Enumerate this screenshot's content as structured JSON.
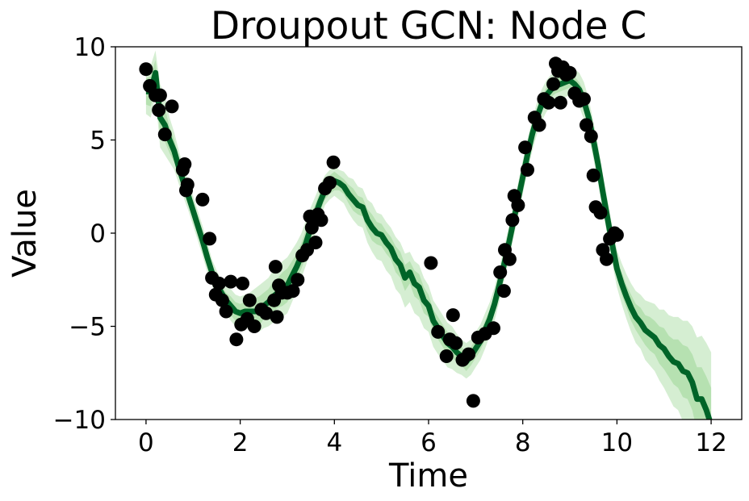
{
  "chart_data": {
    "type": "line",
    "title": "Droupout GCN: Node C",
    "xlabel": "Time",
    "ylabel": "Value",
    "xlim": [
      -0.65,
      12.65
    ],
    "ylim": [
      -10,
      10
    ],
    "xticks": [
      0,
      2,
      4,
      6,
      8,
      10,
      12
    ],
    "yticks": [
      -10,
      -5,
      0,
      5,
      10
    ],
    "xtick_labels": [
      "0",
      "2",
      "4",
      "6",
      "8",
      "10",
      "12"
    ],
    "ytick_labels": [
      "−10",
      "−5",
      "0",
      "5",
      "10"
    ],
    "grid": false,
    "colors": {
      "observed": "#000000",
      "mean_line": "#006428",
      "band": "#a1d99b"
    },
    "observed_points": {
      "x": [
        0.0,
        0.08,
        0.2,
        0.27,
        0.3,
        0.4,
        0.55,
        0.78,
        0.82,
        0.85,
        0.88,
        1.2,
        1.35,
        1.4,
        1.48,
        1.55,
        1.62,
        1.7,
        1.8,
        1.92,
        2.02,
        2.05,
        2.15,
        2.2,
        2.3,
        2.45,
        2.55,
        2.72,
        2.75,
        2.78,
        2.82,
        2.88,
        3.0,
        3.12,
        3.22,
        3.32,
        3.42,
        3.48,
        3.52,
        3.6,
        3.65,
        3.72,
        3.8,
        3.9,
        3.98,
        6.05,
        6.2,
        6.38,
        6.45,
        6.52,
        6.58,
        6.72,
        6.85,
        6.95,
        7.05,
        7.2,
        7.38,
        7.52,
        7.6,
        7.62,
        7.72,
        7.78,
        7.82,
        7.9,
        8.05,
        8.1,
        8.25,
        8.35,
        8.45,
        8.55,
        8.65,
        8.7,
        8.75,
        8.8,
        8.85,
        8.92,
        9.0,
        9.1,
        9.2,
        9.3,
        9.35,
        9.45,
        9.5,
        9.55,
        9.65,
        9.7,
        9.78,
        9.85,
        9.95,
        10.0
      ],
      "y": [
        8.8,
        7.9,
        7.4,
        6.6,
        7.4,
        5.3,
        6.8,
        3.4,
        3.7,
        2.3,
        2.6,
        1.8,
        -0.3,
        -2.4,
        -3.3,
        -2.7,
        -3.6,
        -4.2,
        -2.6,
        -5.7,
        -4.9,
        -2.7,
        -4.6,
        -3.6,
        -5.0,
        -4.1,
        -4.3,
        -3.6,
        -1.8,
        -4.5,
        -2.8,
        -3.2,
        -3.2,
        -3.1,
        -2.5,
        -1.2,
        -0.9,
        0.9,
        0.3,
        -0.5,
        1.0,
        0.7,
        2.4,
        2.7,
        3.8,
        -1.6,
        -5.3,
        -6.6,
        -5.7,
        -4.4,
        -5.9,
        -6.8,
        -6.5,
        -9.0,
        -5.6,
        -5.4,
        -5.1,
        -2.1,
        -3.1,
        -0.9,
        -1.4,
        0.7,
        2.0,
        1.5,
        4.6,
        3.4,
        6.2,
        5.8,
        7.2,
        7.0,
        8.0,
        9.1,
        8.7,
        7.0,
        8.9,
        8.5,
        8.6,
        7.5,
        7.1,
        7.2,
        5.8,
        5.2,
        3.1,
        1.4,
        1.1,
        -0.9,
        -1.4,
        -0.3,
        0.0,
        -0.1
      ]
    },
    "series": [
      {
        "x": [
          0.0,
          0.1,
          0.2,
          0.3,
          0.4,
          0.5,
          0.6,
          0.7,
          0.8,
          0.9,
          1.0,
          1.1,
          1.2,
          1.3,
          1.4,
          1.5,
          1.6,
          1.7,
          1.8,
          1.9,
          2.0,
          2.1,
          2.2,
          2.3,
          2.4,
          2.5,
          2.6,
          2.7,
          2.8,
          2.9,
          3.0,
          3.1,
          3.2,
          3.3,
          3.4,
          3.5,
          3.6,
          3.7,
          3.8,
          3.9,
          4.0,
          4.1,
          4.2,
          4.3,
          4.4,
          4.5,
          4.6,
          4.7,
          4.8,
          4.9,
          5.0,
          5.1,
          5.2,
          5.3,
          5.4,
          5.5,
          5.6,
          5.7,
          5.8,
          5.9,
          6.0,
          6.1,
          6.2,
          6.3,
          6.4,
          6.5,
          6.6,
          6.7,
          6.8,
          6.9,
          7.0,
          7.1,
          7.2,
          7.3,
          7.4,
          7.5,
          7.6,
          7.7,
          7.8,
          7.9,
          8.0,
          8.1,
          8.2,
          8.3,
          8.4,
          8.5,
          8.6,
          8.7,
          8.8,
          8.9,
          9.0,
          9.1,
          9.2,
          9.3,
          9.4,
          9.5,
          9.6,
          9.7,
          9.8,
          9.9,
          10.0,
          10.1,
          10.2,
          10.3,
          10.4,
          10.5,
          10.6,
          10.7,
          10.8,
          10.9,
          11.0,
          11.1,
          11.2,
          11.3,
          11.4,
          11.5,
          11.6,
          11.7,
          11.8,
          11.9,
          12.0
        ],
        "y": [
          7.6,
          7.6,
          8.6,
          6.2,
          5.8,
          5.0,
          4.4,
          3.5,
          2.7,
          2.0,
          1.2,
          0.4,
          -0.4,
          -1.3,
          -2.1,
          -2.7,
          -3.2,
          -3.6,
          -3.9,
          -4.2,
          -4.3,
          -4.2,
          -4.2,
          -4.2,
          -4.2,
          -3.9,
          -3.7,
          -3.4,
          -3.2,
          -3.0,
          -2.8,
          -2.3,
          -1.8,
          -1.2,
          -0.5,
          0.3,
          1.0,
          1.7,
          2.3,
          2.6,
          2.8,
          2.7,
          2.5,
          2.1,
          1.8,
          1.5,
          1.4,
          0.7,
          0.3,
          0.0,
          -0.1,
          -0.5,
          -0.8,
          -1.4,
          -1.7,
          -2.4,
          -2.1,
          -2.7,
          -2.9,
          -3.6,
          -3.9,
          -4.7,
          -5.1,
          -5.5,
          -5.9,
          -6.1,
          -6.4,
          -6.6,
          -6.9,
          -6.6,
          -6.2,
          -5.8,
          -5.2,
          -4.6,
          -3.8,
          -2.8,
          -1.7,
          -0.6,
          0.6,
          1.8,
          3.0,
          4.2,
          5.3,
          6.2,
          6.9,
          7.4,
          7.7,
          7.9,
          8.0,
          8.1,
          8.2,
          8.0,
          7.7,
          7.1,
          6.2,
          5.0,
          3.7,
          2.2,
          0.8,
          -0.6,
          -1.9,
          -2.7,
          -3.4,
          -4.0,
          -4.5,
          -4.8,
          -5.2,
          -5.4,
          -5.6,
          -6.0,
          -6.2,
          -6.6,
          -6.9,
          -7.0,
          -7.4,
          -7.5,
          -8.0,
          -8.9,
          -8.9,
          -9.5,
          -10.3
        ]
      }
    ],
    "bands": [
      {
        "x": [
          0.0,
          0.1,
          0.2,
          0.3,
          0.4,
          0.5,
          0.6,
          0.7,
          0.8,
          0.9,
          1.0,
          1.1,
          1.2,
          1.3,
          1.4,
          1.5,
          1.6,
          1.7,
          1.8,
          1.9,
          2.0,
          2.1,
          2.2,
          2.3,
          2.4,
          2.5,
          2.6,
          2.7,
          2.8,
          2.9,
          3.0,
          3.1,
          3.2,
          3.3,
          3.4,
          3.5,
          3.6,
          3.7,
          3.8,
          3.9,
          4.0,
          4.1,
          4.2,
          4.3,
          4.4,
          4.5,
          4.6,
          4.7,
          4.8,
          4.9,
          5.0,
          5.1,
          5.2,
          5.3,
          5.4,
          5.5,
          5.6,
          5.7,
          5.8,
          5.9,
          6.0,
          6.1,
          6.2,
          6.3,
          6.4,
          6.5,
          6.6,
          6.7,
          6.8,
          6.9,
          7.0,
          7.1,
          7.2,
          7.3,
          7.4,
          7.5,
          7.6,
          7.7,
          7.8,
          7.9,
          8.0,
          8.1,
          8.2,
          8.3,
          8.4,
          8.5,
          8.6,
          8.7,
          8.8,
          8.9,
          9.0,
          9.1,
          9.2,
          9.3,
          9.4,
          9.5,
          9.6,
          9.7,
          9.8,
          9.9,
          10.0,
          10.1,
          10.2,
          10.3,
          10.4,
          10.5,
          10.6,
          10.7,
          10.8,
          10.9,
          11.0,
          11.1,
          11.2,
          11.3,
          11.4,
          11.5,
          11.6,
          11.7,
          11.8,
          11.9,
          12.0
        ],
        "upper": [
          8.8,
          9.0,
          9.8,
          8.0,
          7.4,
          6.2,
          5.4,
          4.4,
          3.5,
          2.8,
          2.0,
          1.2,
          0.4,
          -0.5,
          -1.4,
          -2.0,
          -2.5,
          -2.9,
          -3.0,
          -3.3,
          -3.4,
          -3.3,
          -3.2,
          -3.0,
          -2.8,
          -2.6,
          -2.4,
          -2.0,
          -1.8,
          -1.5,
          -1.3,
          -0.9,
          -0.5,
          0.0,
          0.7,
          1.4,
          2.0,
          2.6,
          3.1,
          3.4,
          3.6,
          3.4,
          3.3,
          3.0,
          2.9,
          2.5,
          2.4,
          1.8,
          1.6,
          1.1,
          1.0,
          0.6,
          0.3,
          -0.2,
          -0.5,
          -1.1,
          -1.0,
          -1.5,
          -1.7,
          -2.4,
          -2.8,
          -3.6,
          -4.0,
          -4.4,
          -4.8,
          -5.0,
          -5.4,
          -5.7,
          -5.9,
          -5.7,
          -5.3,
          -4.9,
          -4.3,
          -3.7,
          -2.9,
          -1.9,
          -0.8,
          0.3,
          1.5,
          2.7,
          3.9,
          5.0,
          6.1,
          7.0,
          7.7,
          8.2,
          8.5,
          8.7,
          8.8,
          8.9,
          8.9,
          8.8,
          8.6,
          8.1,
          7.2,
          6.0,
          4.7,
          3.2,
          1.8,
          0.4,
          -0.9,
          -1.6,
          -2.2,
          -2.7,
          -3.1,
          -3.3,
          -3.6,
          -3.7,
          -3.8,
          -4.1,
          -4.1,
          -4.4,
          -4.5,
          -4.5,
          -4.7,
          -4.7,
          -5.0,
          -5.6,
          -5.5,
          -5.9,
          -6.4
        ],
        "lower": [
          6.4,
          6.2,
          7.4,
          4.6,
          4.2,
          3.8,
          3.4,
          2.6,
          1.9,
          1.2,
          0.4,
          -0.4,
          -1.2,
          -2.1,
          -2.8,
          -3.4,
          -3.9,
          -4.3,
          -4.7,
          -5.0,
          -5.2,
          -5.1,
          -5.1,
          -5.2,
          -5.3,
          -5.1,
          -5.0,
          -4.8,
          -4.6,
          -4.5,
          -4.3,
          -3.7,
          -3.1,
          -2.4,
          -1.7,
          -0.8,
          0.0,
          0.8,
          1.5,
          1.8,
          2.0,
          1.8,
          1.6,
          1.1,
          0.7,
          0.4,
          0.3,
          -0.5,
          -1.0,
          -1.4,
          -1.5,
          -2.0,
          -2.3,
          -3.0,
          -3.3,
          -4.0,
          -3.7,
          -4.3,
          -4.5,
          -5.1,
          -5.3,
          -6.1,
          -6.5,
          -6.8,
          -7.2,
          -7.3,
          -7.5,
          -7.6,
          -7.8,
          -7.6,
          -7.2,
          -6.8,
          -6.2,
          -5.5,
          -4.7,
          -3.7,
          -2.6,
          -1.5,
          -0.3,
          0.9,
          2.1,
          3.3,
          4.4,
          5.3,
          6.0,
          6.5,
          6.8,
          7.0,
          7.2,
          7.3,
          7.4,
          7.2,
          6.8,
          6.1,
          5.2,
          4.0,
          2.7,
          1.2,
          -0.2,
          -1.6,
          -2.9,
          -3.8,
          -4.6,
          -5.3,
          -5.9,
          -6.2,
          -6.8,
          -7.1,
          -7.4,
          -7.9,
          -8.3,
          -8.8,
          -9.3,
          -9.5,
          -10.1,
          -10.3,
          -11.0,
          -12.2,
          -12.3,
          -13.1,
          -14.2
        ]
      },
      {
        "x": [
          0.0,
          0.1,
          0.2,
          0.3,
          0.4,
          0.5,
          0.6,
          0.7,
          0.8,
          0.9,
          1.0,
          1.1,
          1.2,
          1.3,
          1.4,
          1.5,
          1.6,
          1.7,
          1.8,
          1.9,
          2.0,
          2.1,
          2.2,
          2.3,
          2.4,
          2.5,
          2.6,
          2.7,
          2.8,
          2.9,
          3.0,
          3.1,
          3.2,
          3.3,
          3.4,
          3.5,
          3.6,
          3.7,
          3.8,
          3.9,
          4.0,
          4.1,
          4.2,
          4.3,
          4.4,
          4.5,
          4.6,
          4.7,
          4.8,
          4.9,
          5.0,
          5.1,
          5.2,
          5.3,
          5.4,
          5.5,
          5.6,
          5.7,
          5.8,
          5.9,
          6.0,
          6.1,
          6.2,
          6.3,
          6.4,
          6.5,
          6.6,
          6.7,
          6.8,
          6.9,
          7.0,
          7.1,
          7.2,
          7.3,
          7.4,
          7.5,
          7.6,
          7.7,
          7.8,
          7.9,
          8.0,
          8.1,
          8.2,
          8.3,
          8.4,
          8.5,
          8.6,
          8.7,
          8.8,
          8.9,
          9.0,
          9.1,
          9.2,
          9.3,
          9.4,
          9.5,
          9.6,
          9.7,
          9.8,
          9.9,
          10.0,
          10.1,
          10.2,
          10.3,
          10.4,
          10.5,
          10.6,
          10.7,
          10.8,
          10.9,
          11.0,
          11.1,
          11.2,
          11.3,
          11.4,
          11.5,
          11.6,
          11.7,
          11.8,
          11.9,
          12.0
        ],
        "upper": [
          8.3,
          8.4,
          9.3,
          7.2,
          6.7,
          5.7,
          5.0,
          4.0,
          3.2,
          2.5,
          1.7,
          0.9,
          0.1,
          -0.8,
          -1.7,
          -2.3,
          -2.8,
          -3.2,
          -3.4,
          -3.7,
          -3.8,
          -3.7,
          -3.6,
          -3.5,
          -3.4,
          -3.2,
          -3.0,
          -2.6,
          -2.4,
          -2.1,
          -1.9,
          -1.5,
          -1.1,
          -0.5,
          0.2,
          0.9,
          1.6,
          2.2,
          2.8,
          3.1,
          3.3,
          3.1,
          2.9,
          2.6,
          2.4,
          2.0,
          1.9,
          1.3,
          1.0,
          0.6,
          0.5,
          0.1,
          -0.2,
          -0.7,
          -1.0,
          -1.7,
          -1.5,
          -2.0,
          -2.2,
          -2.9,
          -3.3,
          -4.1,
          -4.5,
          -4.9,
          -5.3,
          -5.5,
          -5.9,
          -6.1,
          -6.4,
          -6.1,
          -5.7,
          -5.3,
          -4.7,
          -4.1,
          -3.3,
          -2.3,
          -1.2,
          -0.1,
          1.1,
          2.3,
          3.5,
          4.6,
          5.7,
          6.6,
          7.3,
          7.8,
          8.1,
          8.3,
          8.4,
          8.5,
          8.6,
          8.4,
          8.1,
          7.6,
          6.7,
          5.5,
          4.2,
          2.7,
          1.3,
          -0.1,
          -1.4,
          -2.1,
          -2.8,
          -3.3,
          -3.8,
          -4.0,
          -4.4,
          -4.5,
          -4.7,
          -5.0,
          -5.1,
          -5.5,
          -5.7,
          -5.7,
          -6.0,
          -6.1,
          -6.5,
          -7.2,
          -7.2,
          -7.7,
          -8.3
        ],
        "lower": [
          6.9,
          6.8,
          7.9,
          5.2,
          4.9,
          4.3,
          3.8,
          3.0,
          2.2,
          1.5,
          0.7,
          -0.1,
          -0.9,
          -1.8,
          -2.5,
          -3.1,
          -3.6,
          -4.0,
          -4.4,
          -4.7,
          -4.8,
          -4.7,
          -4.8,
          -4.9,
          -5.0,
          -4.6,
          -4.4,
          -4.2,
          -4.0,
          -3.9,
          -3.7,
          -3.1,
          -2.5,
          -1.9,
          -1.2,
          -0.3,
          0.4,
          1.2,
          1.8,
          2.1,
          2.3,
          2.3,
          2.1,
          1.6,
          1.2,
          1.0,
          0.9,
          0.1,
          -0.4,
          -0.6,
          -0.7,
          -1.1,
          -1.4,
          -2.1,
          -2.4,
          -3.1,
          -2.7,
          -3.4,
          -3.6,
          -4.3,
          -4.5,
          -5.3,
          -5.7,
          -6.1,
          -6.5,
          -6.7,
          -6.9,
          -7.1,
          -7.4,
          -7.1,
          -6.7,
          -6.3,
          -5.7,
          -5.1,
          -4.3,
          -3.3,
          -2.2,
          -1.1,
          0.1,
          1.3,
          2.5,
          3.8,
          4.9,
          5.8,
          6.5,
          7.0,
          7.3,
          7.5,
          7.6,
          7.7,
          7.8,
          7.6,
          7.3,
          6.6,
          5.7,
          4.5,
          3.2,
          1.7,
          0.3,
          -1.1,
          -2.4,
          -3.3,
          -4.0,
          -4.7,
          -5.2,
          -5.6,
          -6.0,
          -6.3,
          -6.5,
          -7.0,
          -7.3,
          -7.7,
          -8.1,
          -8.3,
          -8.8,
          -8.9,
          -9.5,
          -10.6,
          -10.6,
          -11.3,
          -12.3
        ]
      }
    ]
  }
}
